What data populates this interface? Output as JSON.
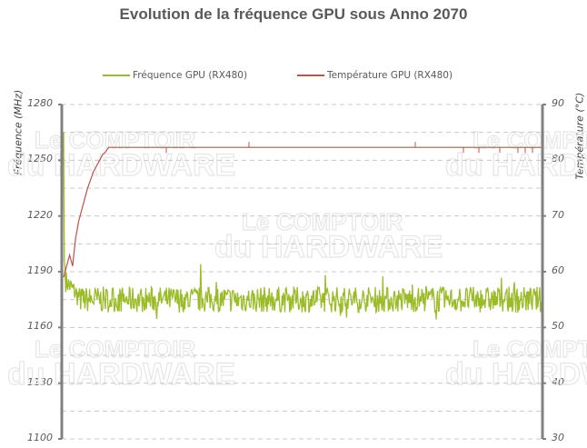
{
  "chart_data": {
    "type": "line",
    "title": "Evolution de la fréquence GPU sous Anno 2070",
    "legend": [
      {
        "name": "Fréquence GPU (RX480)",
        "color": "#9bbb29",
        "axis": "left"
      },
      {
        "name": "Température GPU  (RX480)",
        "color": "#c0504d",
        "axis": "right"
      }
    ],
    "y_left": {
      "label": "Fréquence (MHz)",
      "min": 1100,
      "max": 1280,
      "ticks": [
        1100,
        1130,
        1160,
        1190,
        1220,
        1250,
        1280
      ],
      "grid_step": 15
    },
    "y_right": {
      "label": "Température (°C)",
      "min": 30,
      "max": 90,
      "ticks": [
        30,
        40,
        50,
        60,
        70,
        80,
        90
      ]
    },
    "xlabel": "",
    "grid": "horizontal dashed",
    "legend_position": "top",
    "series": [
      {
        "name": "Fréquence GPU (RX480)",
        "description": "Initial spike ~1265 MHz, drops to ~1190 then settles noisily around 1175 MHz (range ~1165–1185) with one spike to ~1194",
        "values": [
          1265,
          1200,
          1192,
          1188,
          1182,
          1180,
          1178,
          1176,
          1175,
          1174,
          1175,
          1176,
          1174,
          1173,
          1175,
          1194,
          1175,
          1174,
          1176,
          1175,
          1174,
          1175,
          1176,
          1175,
          1174,
          1175,
          1176,
          1175,
          1174,
          1175,
          1176,
          1175,
          1174,
          1175,
          1175,
          1176,
          1175,
          1174,
          1175,
          1176
        ]
      },
      {
        "name": "Température GPU  (RX480)",
        "description": "Starts ~59°C, rises steeply to ~82.3°C within first ~10% of run, then stays flat at ~82.3°C with occasional 1-sample dips/bumps",
        "values": [
          59,
          61,
          63,
          61,
          66,
          69,
          71,
          73,
          75,
          76.5,
          78,
          79,
          80,
          81,
          81.5,
          82.3,
          82.3,
          82.3,
          82.3,
          82.3,
          82.3,
          82.3,
          82.3,
          82.3,
          82.3,
          82.3,
          82.3,
          82.3,
          82.3,
          82.3,
          82.3,
          82.3,
          82.3,
          82.3,
          82.3,
          82.3,
          82.3,
          82.3,
          82.3,
          82.3
        ]
      }
    ]
  },
  "watermark": {
    "line1": "Le COMPTOIR",
    "line2": "du HARDWARE"
  }
}
